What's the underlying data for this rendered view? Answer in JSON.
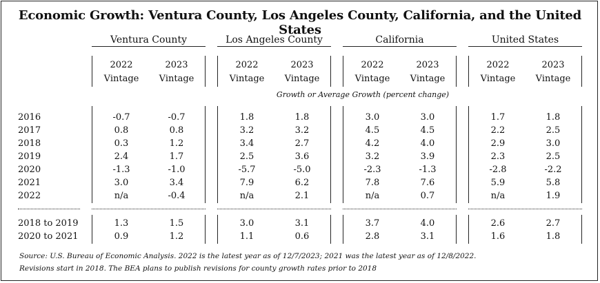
{
  "title": "Economic Growth: Ventura County, Los Angeles County, California, and the United States",
  "groups": [
    {
      "name": "Ventura County"
    },
    {
      "name": "Los Angeles County"
    },
    {
      "name": "California"
    },
    {
      "name": "United States"
    }
  ],
  "vintage_headers": [
    {
      "year": "2022",
      "label": "Vintage"
    },
    {
      "year": "2023",
      "label": "Vintage"
    }
  ],
  "subtitle": "Growth or Average Growth (percent change)",
  "rows": [
    {
      "label": "2016",
      "values": [
        "-0.7",
        "-0.7",
        "1.8",
        "1.8",
        "3.0",
        "3.0",
        "1.7",
        "1.8"
      ]
    },
    {
      "label": "2017",
      "values": [
        "0.8",
        "0.8",
        "3.2",
        "3.2",
        "4.5",
        "4.5",
        "2.2",
        "2.5"
      ]
    },
    {
      "label": "2018",
      "values": [
        "0.3",
        "1.2",
        "3.4",
        "2.7",
        "4.2",
        "4.0",
        "2.9",
        "3.0"
      ]
    },
    {
      "label": "2019",
      "values": [
        "2.4",
        "1.7",
        "2.5",
        "3.6",
        "3.2",
        "3.9",
        "2.3",
        "2.5"
      ]
    },
    {
      "label": "2020",
      "values": [
        "-1.3",
        "-1.0",
        "-5.7",
        "-5.0",
        "-2.3",
        "-1.3",
        "-2.8",
        "-2.2"
      ]
    },
    {
      "label": "2021",
      "values": [
        "3.0",
        "3.4",
        "7.9",
        "6.2",
        "7.8",
        "7.6",
        "5.9",
        "5.8"
      ]
    },
    {
      "label": "2022",
      "values": [
        "n/a",
        "-0.4",
        "n/a",
        "2.1",
        "n/a",
        "0.7",
        "n/a",
        "1.9"
      ]
    }
  ],
  "avg_rows": [
    {
      "label": "2018 to 2019",
      "values": [
        "1.3",
        "1.5",
        "3.0",
        "3.1",
        "3.7",
        "4.0",
        "2.6",
        "2.7"
      ]
    },
    {
      "label": "2020 to 2021",
      "values": [
        "0.9",
        "1.2",
        "1.1",
        "0.6",
        "2.8",
        "3.1",
        "1.6",
        "1.8"
      ]
    }
  ],
  "source_line1": "Source: U.S. Bureau of Economic Analysis. 2022 is the latest year as of 12/7/2023; 2021 was the latest year as of 12/8/2022.",
  "source_line2": "Revisions start in 2018. The BEA plans to publish revisions for county growth rates prior to 2018"
}
